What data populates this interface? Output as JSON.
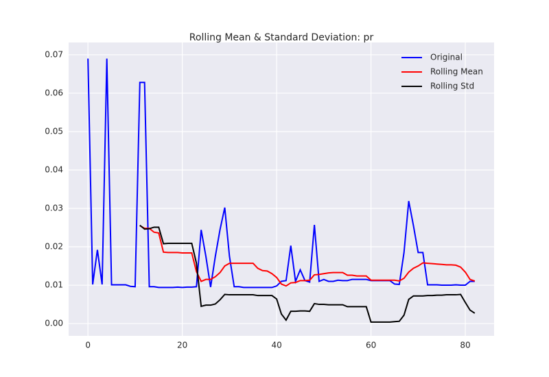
{
  "chart_data": {
    "type": "line",
    "title": "Rolling Mean & Standard Deviation: pr",
    "x": [
      0,
      1,
      2,
      3,
      4,
      5,
      6,
      7,
      8,
      9,
      10,
      11,
      12,
      13,
      14,
      15,
      16,
      17,
      18,
      19,
      20,
      21,
      22,
      23,
      24,
      25,
      26,
      27,
      28,
      29,
      30,
      31,
      32,
      33,
      34,
      35,
      36,
      37,
      38,
      39,
      40,
      41,
      42,
      43,
      44,
      45,
      46,
      47,
      48,
      49,
      50,
      51,
      52,
      53,
      54,
      55,
      56,
      57,
      58,
      59,
      60,
      61,
      62,
      63,
      64,
      65,
      66,
      67,
      68,
      69,
      70,
      71,
      72,
      73,
      74,
      75,
      76,
      77,
      78,
      79,
      80,
      81,
      82
    ],
    "series": [
      {
        "name": "Original",
        "color": "#0000ff",
        "values": [
          0.069,
          0.0102,
          0.0192,
          0.0102,
          0.069,
          0.0101,
          0.0101,
          0.0101,
          0.0101,
          0.0097,
          0.0096,
          0.0628,
          0.0628,
          0.0096,
          0.0096,
          0.0094,
          0.0094,
          0.0094,
          0.0094,
          0.0095,
          0.0094,
          0.0095,
          0.0095,
          0.0096,
          0.0244,
          0.0175,
          0.0095,
          0.0175,
          0.0245,
          0.0302,
          0.0175,
          0.0096,
          0.0096,
          0.0094,
          0.0094,
          0.0094,
          0.0094,
          0.0094,
          0.0094,
          0.0094,
          0.0098,
          0.011,
          0.0112,
          0.0203,
          0.011,
          0.014,
          0.0112,
          0.0108,
          0.0257,
          0.011,
          0.0115,
          0.011,
          0.011,
          0.0113,
          0.0112,
          0.0112,
          0.0115,
          0.0115,
          0.0115,
          0.0115,
          0.0112,
          0.0112,
          0.0112,
          0.0112,
          0.0112,
          0.0103,
          0.0102,
          0.0185,
          0.0319,
          0.0255,
          0.0185,
          0.0185,
          0.0101,
          0.0101,
          0.0101,
          0.01,
          0.01,
          0.01,
          0.0101,
          0.01,
          0.01,
          0.011,
          0.011
        ]
      },
      {
        "name": "Rolling Mean",
        "color": "#ff0000",
        "values": [
          null,
          null,
          null,
          null,
          null,
          null,
          null,
          null,
          null,
          null,
          null,
          0.0255,
          0.0248,
          0.0248,
          0.0238,
          0.0236,
          0.0186,
          0.0185,
          0.0185,
          0.0185,
          0.0184,
          0.0184,
          0.0184,
          0.0135,
          0.011,
          0.0115,
          0.0115,
          0.0122,
          0.0133,
          0.015,
          0.0157,
          0.0157,
          0.0157,
          0.0157,
          0.0157,
          0.0157,
          0.0144,
          0.0138,
          0.0137,
          0.013,
          0.012,
          0.0103,
          0.0098,
          0.0106,
          0.0107,
          0.0112,
          0.0112,
          0.0113,
          0.0127,
          0.0128,
          0.013,
          0.0132,
          0.0133,
          0.0133,
          0.0133,
          0.0126,
          0.0126,
          0.0124,
          0.0124,
          0.0124,
          0.0113,
          0.0113,
          0.0113,
          0.0113,
          0.0113,
          0.0113,
          0.0111,
          0.0118,
          0.0134,
          0.0144,
          0.015,
          0.0158,
          0.0157,
          0.0156,
          0.0155,
          0.0154,
          0.0153,
          0.0153,
          0.0152,
          0.0147,
          0.0134,
          0.0115,
          0.0111
        ]
      },
      {
        "name": "Rolling Std",
        "color": "#000000",
        "values": [
          null,
          null,
          null,
          null,
          null,
          null,
          null,
          null,
          null,
          null,
          null,
          0.0256,
          0.0246,
          0.0247,
          0.0251,
          0.0251,
          0.0208,
          0.0209,
          0.0209,
          0.0209,
          0.0209,
          0.0209,
          0.0209,
          0.0157,
          0.0045,
          0.0048,
          0.0048,
          0.0051,
          0.0062,
          0.0076,
          0.0075,
          0.0075,
          0.0075,
          0.0075,
          0.0075,
          0.0075,
          0.0073,
          0.0073,
          0.0073,
          0.0073,
          0.0064,
          0.0025,
          0.0009,
          0.0032,
          0.0032,
          0.0033,
          0.0033,
          0.0032,
          0.0052,
          0.005,
          0.005,
          0.0049,
          0.0049,
          0.0049,
          0.0049,
          0.0044,
          0.0044,
          0.0044,
          0.0044,
          0.0044,
          0.0004,
          0.0004,
          0.0004,
          0.0004,
          0.0004,
          0.0005,
          0.0006,
          0.0022,
          0.0063,
          0.0072,
          0.0072,
          0.0072,
          0.0073,
          0.0073,
          0.0074,
          0.0074,
          0.0075,
          0.0075,
          0.0075,
          0.0076,
          0.0055,
          0.0035,
          0.0027
        ]
      }
    ],
    "xlim": [
      -4.1,
      86.1
    ],
    "ylim": [
      -0.0032,
      0.0732
    ],
    "xticks": [
      0,
      20,
      40,
      60,
      80
    ],
    "yticks": [
      {
        "value": 0,
        "label": "0.00"
      },
      0.01,
      0.02,
      0.03,
      0.04,
      0.05,
      0.06,
      0.07
    ],
    "grid": true,
    "legend": "upper right"
  }
}
